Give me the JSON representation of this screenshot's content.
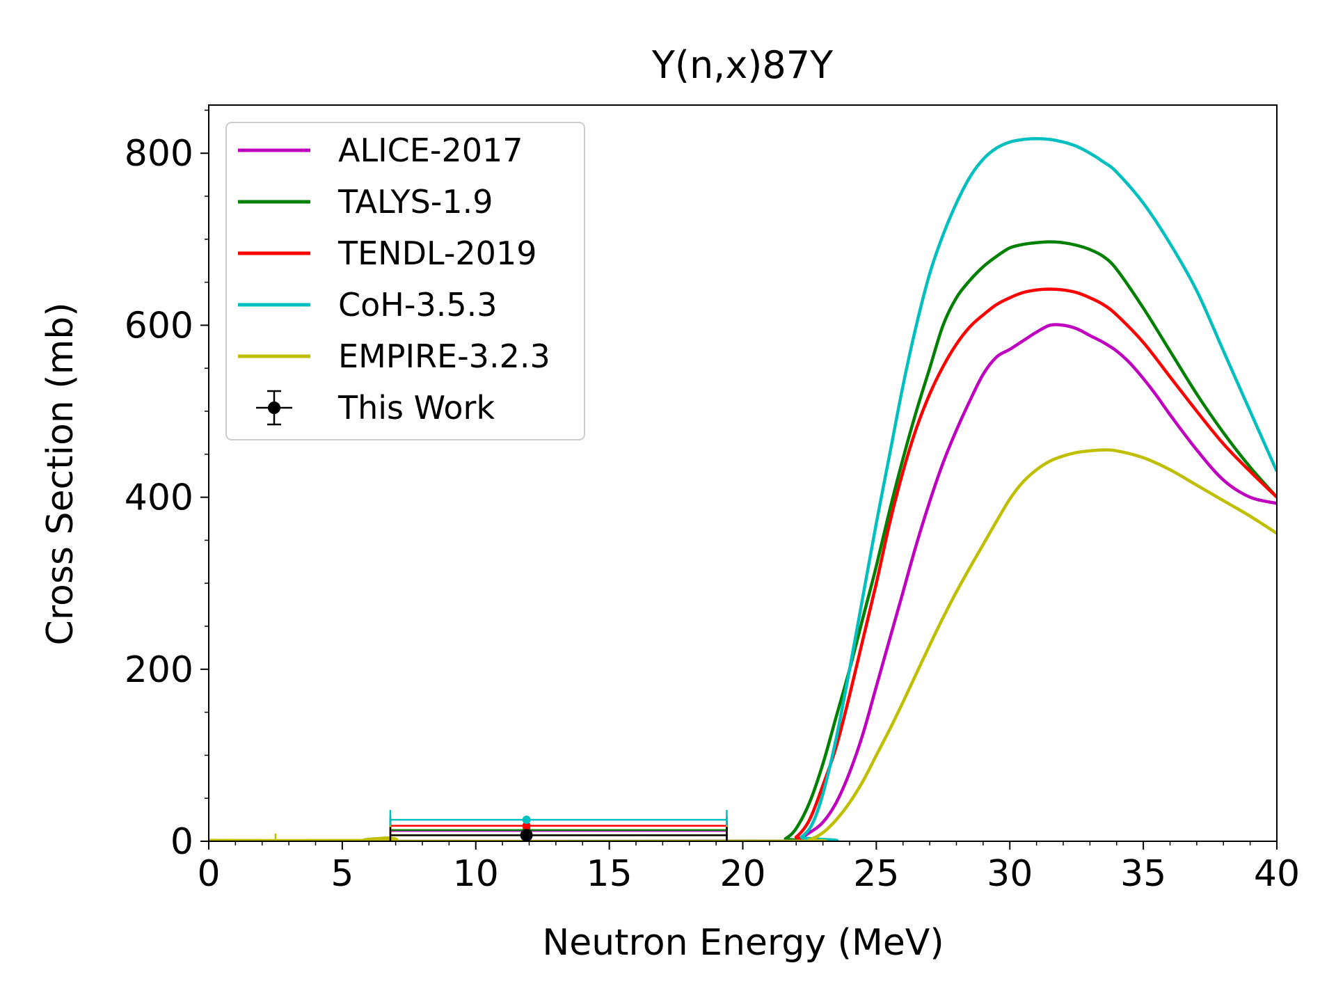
{
  "chart_data": {
    "type": "line",
    "title": "Y(n,x)87Y",
    "xlabel": "Neutron Energy (MeV)",
    "ylabel": "Cross Section (mb)",
    "xlim": [
      0,
      40
    ],
    "ylim": [
      0,
      856
    ],
    "xticks": [
      0,
      5,
      10,
      15,
      20,
      25,
      30,
      35,
      40
    ],
    "yticks": [
      0,
      200,
      400,
      600,
      800
    ],
    "grid": false,
    "legend_position": "top-left",
    "series": [
      {
        "name": "ALICE-2017",
        "color": "#bf00bf",
        "x": [
          0,
          21.5,
          22,
          22.5,
          23,
          23.5,
          24,
          24.5,
          25,
          25.5,
          26,
          26.5,
          27,
          27.5,
          28,
          28.5,
          29,
          29.5,
          30,
          30.5,
          31,
          31.5,
          32,
          32.5,
          33,
          33.5,
          34,
          34.5,
          35,
          35.5,
          36,
          37,
          38,
          39,
          40
        ],
        "y": [
          0,
          0,
          2,
          10,
          22,
          45,
          80,
          125,
          180,
          235,
          290,
          345,
          395,
          440,
          478,
          512,
          543,
          563,
          572,
          582,
          592,
          600,
          600,
          596,
          588,
          580,
          570,
          556,
          538,
          518,
          496,
          455,
          420,
          400,
          393
        ],
        "marker": {
          "x": 11.9,
          "y": 12,
          "xerr_low": 6.8,
          "xerr_high": 19.4
        }
      },
      {
        "name": "TALYS-1.9",
        "color": "#008000",
        "x": [
          0,
          21.2,
          21.6,
          22,
          22.5,
          23,
          23.5,
          24,
          24.5,
          25,
          25.5,
          26,
          26.5,
          27,
          27.5,
          28,
          28.5,
          29,
          29.5,
          30,
          30.5,
          31,
          31.5,
          32,
          32.5,
          33,
          33.5,
          34,
          35,
          36,
          37,
          38,
          39,
          40
        ],
        "y": [
          0,
          0,
          3,
          15,
          45,
          90,
          145,
          200,
          260,
          320,
          385,
          445,
          500,
          550,
          600,
          632,
          652,
          668,
          680,
          690,
          694,
          696,
          697,
          696,
          693,
          688,
          680,
          665,
          620,
          570,
          520,
          475,
          435,
          400
        ],
        "marker": {
          "x": 11.9,
          "y": 13,
          "xerr_low": 6.8,
          "xerr_high": 19.4
        }
      },
      {
        "name": "TENDL-2019",
        "color": "#ff0000",
        "x": [
          0,
          21.5,
          22,
          22.5,
          23,
          23.5,
          24,
          24.5,
          25,
          25.5,
          26,
          26.5,
          27,
          27.5,
          28,
          28.5,
          29,
          29.5,
          30,
          30.5,
          31,
          31.5,
          32,
          32.5,
          33,
          33.5,
          34,
          35,
          36,
          37,
          38,
          39,
          40
        ],
        "y": [
          0,
          0,
          5,
          25,
          65,
          110,
          170,
          235,
          300,
          370,
          430,
          480,
          520,
          552,
          578,
          598,
          612,
          624,
          632,
          638,
          641,
          642,
          641,
          638,
          632,
          624,
          612,
          580,
          540,
          500,
          462,
          430,
          400
        ],
        "marker": {
          "x": 11.9,
          "y": 18,
          "xerr_low": 6.8,
          "xerr_high": 19.4
        }
      },
      {
        "name": "CoH-3.5.3",
        "color": "#00bfbf",
        "x": [
          0,
          21.8,
          22.2,
          22.6,
          23,
          23.5,
          24,
          24.5,
          25,
          25.5,
          26,
          26.5,
          27,
          27.5,
          28,
          28.5,
          29,
          29.5,
          30,
          30.5,
          31,
          31.5,
          32,
          32.5,
          33,
          33.5,
          34,
          35,
          36,
          37,
          38,
          39,
          40
        ],
        "y": [
          0,
          0,
          5,
          20,
          55,
          120,
          200,
          285,
          370,
          450,
          530,
          600,
          660,
          705,
          742,
          772,
          793,
          806,
          813,
          816,
          817,
          816,
          813,
          808,
          800,
          790,
          778,
          742,
          695,
          640,
          570,
          500,
          430
        ],
        "marker": {
          "x": 11.9,
          "y": 25,
          "xerr_low": 6.8,
          "xerr_high": 19.4
        }
      },
      {
        "name": "EMPIRE-3.2.3",
        "color": "#bfbf00",
        "x": [
          0,
          6.5,
          6.7,
          7,
          21.8,
          22.5,
          23,
          23.5,
          24,
          24.5,
          25,
          25.5,
          26,
          26.5,
          27,
          27.5,
          28,
          28.5,
          29,
          29.5,
          30,
          30.5,
          31,
          31.5,
          32,
          32.5,
          33,
          33.5,
          34,
          35,
          36,
          37,
          38,
          39,
          40
        ],
        "y": [
          1,
          1,
          4,
          0,
          0,
          2,
          10,
          25,
          45,
          70,
          100,
          130,
          162,
          195,
          228,
          260,
          290,
          318,
          345,
          372,
          398,
          418,
          432,
          442,
          448,
          452,
          454,
          455,
          454,
          446,
          432,
          414,
          396,
          378,
          358
        ],
        "marker": {
          "x": 11.9,
          "y": 7,
          "xerr_low": 6.8,
          "xerr_high": 19.4
        }
      },
      {
        "name": "This Work",
        "color": "#000000",
        "kind": "errorbar",
        "x": [
          11.9
        ],
        "y": [
          7
        ],
        "xerr_low": [
          6.8
        ],
        "xerr_high": [
          19.4
        ]
      }
    ],
    "annotations": [
      {
        "x": 2.5,
        "y": 0,
        "height": 9,
        "color": "#bfbf00"
      }
    ]
  }
}
